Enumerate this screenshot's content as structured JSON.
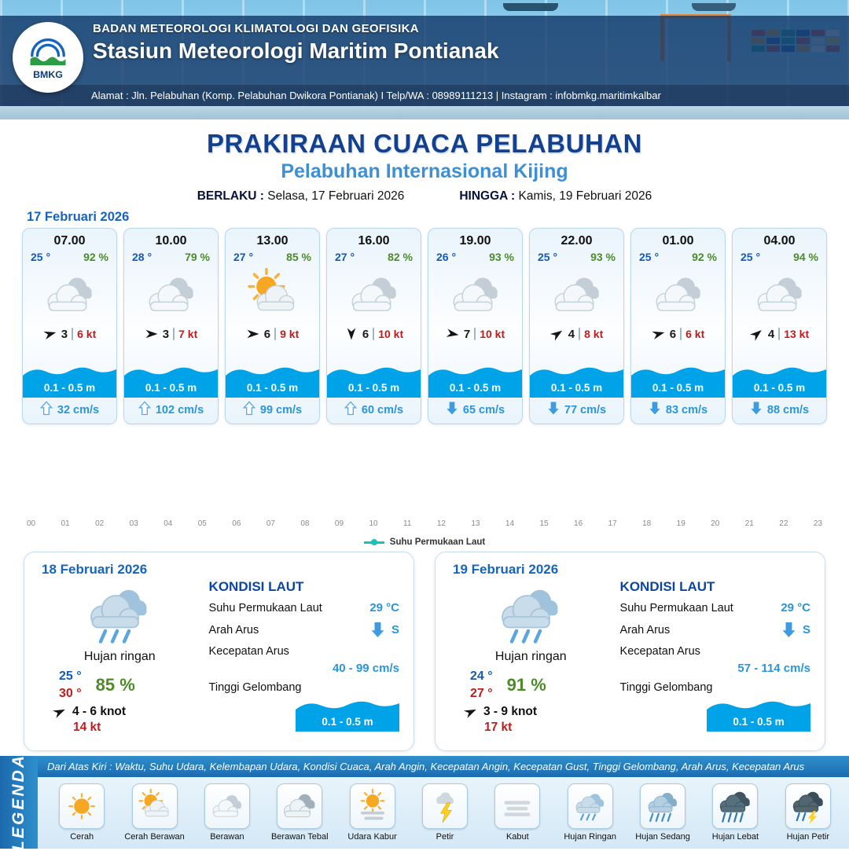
{
  "header": {
    "logo_text": "BMKG",
    "agency": "BADAN METEOROLOGI KLIMATOLOGI DAN GEOFISIKA",
    "station": "Stasiun Meteorologi Maritim Pontianak",
    "address": "Alamat : Jln. Pelabuhan (Komp. Pelabuhan Dwikora Pontianak) I Telp/WA : 08989111213 | Instagram : infobmkg.maritimkalbar"
  },
  "title": {
    "main": "PRAKIRAAN CUACA PELABUHAN",
    "subtitle": "Pelabuhan Internasional Kijing",
    "berlaku_label": "BERLAKU :",
    "berlaku_value": "Selasa, 17 Februari 2026",
    "hingga_label": "HINGGA :",
    "hingga_value": "Kamis, 19 Februari 2026"
  },
  "day1": {
    "date": "17 Februari 2026",
    "cards": [
      {
        "time": "07.00",
        "temp": "25 °",
        "humidity": "92 %",
        "weather_icon": "berawan",
        "wind_dir_deg": -15,
        "wind_value": "3",
        "wind_speed": "6 kt",
        "wave": "0.1 - 0.5 m",
        "current_dir": "up",
        "current_speed": "32 cm/s"
      },
      {
        "time": "10.00",
        "temp": "28 °",
        "humidity": "79 %",
        "weather_icon": "berawan",
        "wind_dir_deg": 0,
        "wind_value": "3",
        "wind_speed": "7 kt",
        "wave": "0.1 - 0.5 m",
        "current_dir": "up",
        "current_speed": "102 cm/s"
      },
      {
        "time": "13.00",
        "temp": "27 °",
        "humidity": "85 %",
        "weather_icon": "cerah-berawan",
        "wind_dir_deg": 0,
        "wind_value": "6",
        "wind_speed": "9 kt",
        "wave": "0.1 - 0.5 m",
        "current_dir": "up",
        "current_speed": "99 cm/s"
      },
      {
        "time": "16.00",
        "temp": "27 °",
        "humidity": "82 %",
        "weather_icon": "berawan",
        "wind_dir_deg": 90,
        "wind_value": "6",
        "wind_speed": "10 kt",
        "wave": "0.1 - 0.5 m",
        "current_dir": "up",
        "current_speed": "60 cm/s"
      },
      {
        "time": "19.00",
        "temp": "26 °",
        "humidity": "93 %",
        "weather_icon": "berawan",
        "wind_dir_deg": 10,
        "wind_value": "7",
        "wind_speed": "10 kt",
        "wave": "0.1 - 0.5 m",
        "current_dir": "down",
        "current_speed": "65 cm/s"
      },
      {
        "time": "22.00",
        "temp": "25 °",
        "humidity": "93 %",
        "weather_icon": "berawan",
        "wind_dir_deg": -35,
        "wind_value": "4",
        "wind_speed": "8 kt",
        "wave": "0.1 - 0.5 m",
        "current_dir": "down",
        "current_speed": "77 cm/s"
      },
      {
        "time": "01.00",
        "temp": "25 °",
        "humidity": "92 %",
        "weather_icon": "berawan",
        "wind_dir_deg": -15,
        "wind_value": "6",
        "wind_speed": "6 kt",
        "wave": "0.1 - 0.5 m",
        "current_dir": "down",
        "current_speed": "83 cm/s"
      },
      {
        "time": "04.00",
        "temp": "25 °",
        "humidity": "94 %",
        "weather_icon": "berawan",
        "wind_dir_deg": -40,
        "wind_value": "4",
        "wind_speed": "13 kt",
        "wave": "0.1 - 0.5 m",
        "current_dir": "down",
        "current_speed": "88 cm/s"
      }
    ]
  },
  "chart": {
    "hours": [
      "00",
      "01",
      "02",
      "03",
      "04",
      "05",
      "06",
      "07",
      "08",
      "09",
      "10",
      "11",
      "12",
      "13",
      "14",
      "15",
      "16",
      "17",
      "18",
      "19",
      "20",
      "21",
      "22",
      "23"
    ],
    "legend": "Suhu Permukaan Laut",
    "legend_color": "#17c3b2"
  },
  "days": [
    {
      "date": "18 Februari 2026",
      "condition": "Hujan ringan",
      "weather_icon": "hujan-ringan",
      "temp_min": "25 °",
      "temp_max": "30 °",
      "humidity": "85 %",
      "wind_range": "4  - 6 knot",
      "gust": "14 kt",
      "sea": {
        "title": "KONDISI LAUT",
        "sst_label": "Suhu Permukaan Laut",
        "sst_value": "29 °C",
        "arus_label": "Arah Arus",
        "arus_dir": "S",
        "kecepatan_label": "Kecepatan Arus",
        "kecepatan_value": "40 - 99 cm/s",
        "gelombang_label": "Tinggi Gelombang",
        "gelombang_value": "0.1 - 0.5 m"
      }
    },
    {
      "date": "19 Februari 2026",
      "condition": "Hujan ringan",
      "weather_icon": "hujan-ringan",
      "temp_min": "24 °",
      "temp_max": "27 °",
      "humidity": "91 %",
      "wind_range": "3  - 9 knot",
      "gust": "17 kt",
      "sea": {
        "title": "KONDISI LAUT",
        "sst_label": "Suhu Permukaan Laut",
        "sst_value": "29 °C",
        "arus_label": "Arah Arus",
        "arus_dir": "S",
        "kecepatan_label": "Kecepatan Arus",
        "kecepatan_value": "57 - 114 cm/s",
        "gelombang_label": "Tinggi Gelombang",
        "gelombang_value": "0.1 - 0.5 m"
      }
    }
  ],
  "legend_bar": {
    "note": "Dari Atas Kiri : Waktu, Suhu Udara, Kelembapan Udara, Kondisi Cuaca, Arah Angin, Kecepatan Angin, Kecepatan Gust, Tinggi Gelombang, Arah Arus, Kecepatan Arus",
    "title": "LEGENDA",
    "items": [
      {
        "label": "Cerah",
        "icon": "cerah"
      },
      {
        "label": "Cerah Berawan",
        "icon": "cerah-berawan"
      },
      {
        "label": "Berawan",
        "icon": "berawan"
      },
      {
        "label": "Berawan Tebal",
        "icon": "berawan-tebal"
      },
      {
        "label": "Udara Kabur",
        "icon": "udara-kabur"
      },
      {
        "label": "Petir",
        "icon": "petir"
      },
      {
        "label": "Kabut",
        "icon": "kabut"
      },
      {
        "label": "Hujan Ringan",
        "icon": "hujan-ringan"
      },
      {
        "label": "Hujan Sedang",
        "icon": "hujan-sedang"
      },
      {
        "label": "Hujan Lebat",
        "icon": "hujan-lebat"
      },
      {
        "label": "Hujan Petir",
        "icon": "hujan-petir"
      }
    ]
  }
}
